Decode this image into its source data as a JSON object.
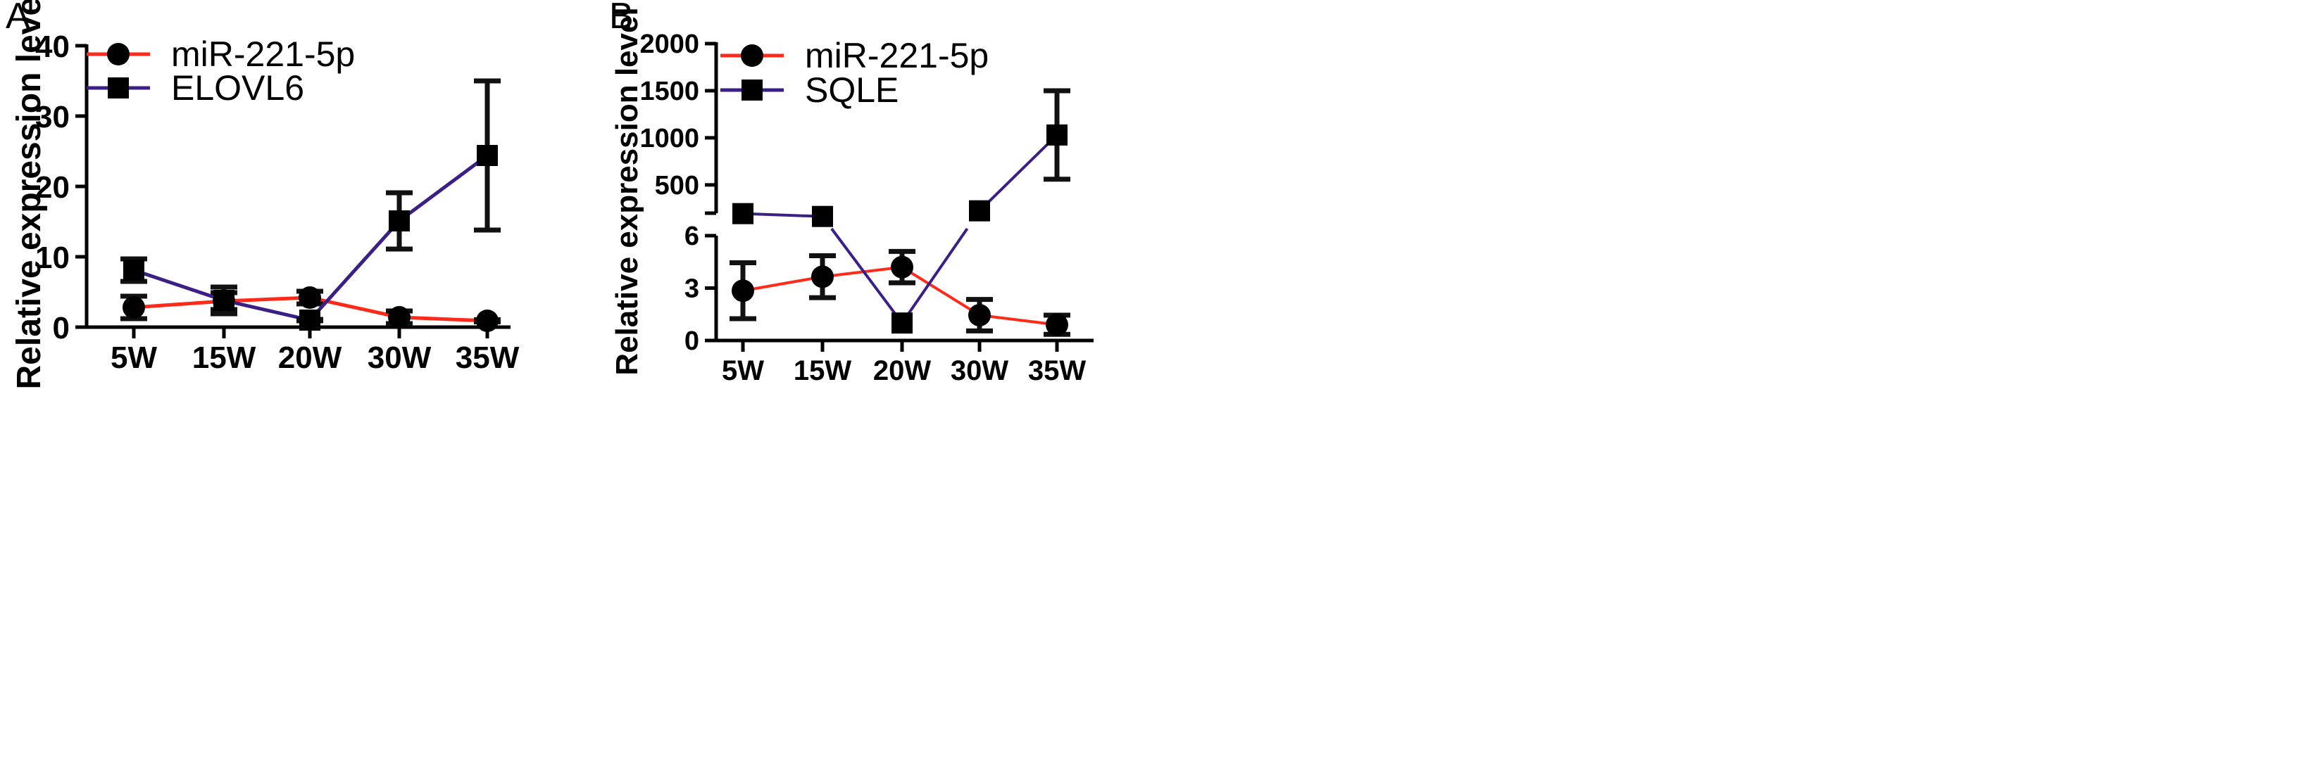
{
  "colors": {
    "mir": "#ff2a1a",
    "target": "#3b1f86",
    "axis": "#000000",
    "errorbar": "#111111"
  },
  "chart_data": [
    {
      "panel_label": "A",
      "type": "line",
      "title": "",
      "xlabel": "",
      "ylabel": "Relative expression level",
      "categories": [
        "5W",
        "15W",
        "20W",
        "30W",
        "35W"
      ],
      "ylim": [
        0,
        40
      ],
      "yticks": [
        0,
        10,
        20,
        30,
        40
      ],
      "grid": false,
      "legend": "top-left",
      "series": [
        {
          "name": "miR-221-5p",
          "marker": "circle",
          "color_key": "mir",
          "values": [
            2.8,
            3.7,
            4.2,
            1.4,
            0.9
          ],
          "errors": [
            1.6,
            1.2,
            0.9,
            0.9,
            0.15
          ]
        },
        {
          "name": "ELOVL6",
          "marker": "square",
          "color_key": "target",
          "values": [
            8.1,
            3.8,
            1.0,
            15.1,
            24.4
          ],
          "errors": [
            1.6,
            1.9,
            0.1,
            4.0,
            10.6
          ]
        }
      ]
    },
    {
      "panel_label": "B",
      "type": "line",
      "title": "",
      "xlabel": "",
      "ylabel": "Relative expression level",
      "categories": [
        "5W",
        "15W",
        "20W",
        "30W",
        "35W"
      ],
      "broken_axis": {
        "lower_range": [
          0,
          6
        ],
        "upper_range": [
          200,
          2000
        ]
      },
      "yticks_lower": [
        0,
        3,
        6
      ],
      "yticks_upper": [
        500,
        1000,
        1500,
        2000
      ],
      "grid": false,
      "legend": "top-left",
      "series": [
        {
          "name": "miR-221-5p",
          "marker": "circle",
          "color_key": "mir",
          "values": [
            2.85,
            3.65,
            4.2,
            1.45,
            0.9
          ],
          "errors": [
            1.6,
            1.2,
            0.9,
            0.9,
            0.55
          ]
        },
        {
          "name": "SQLE",
          "marker": "square",
          "color_key": "target",
          "values": [
            195,
            165,
            1.0,
            225,
            1030
          ],
          "errors": [
            0,
            0,
            0,
            0,
            470
          ]
        }
      ]
    }
  ]
}
